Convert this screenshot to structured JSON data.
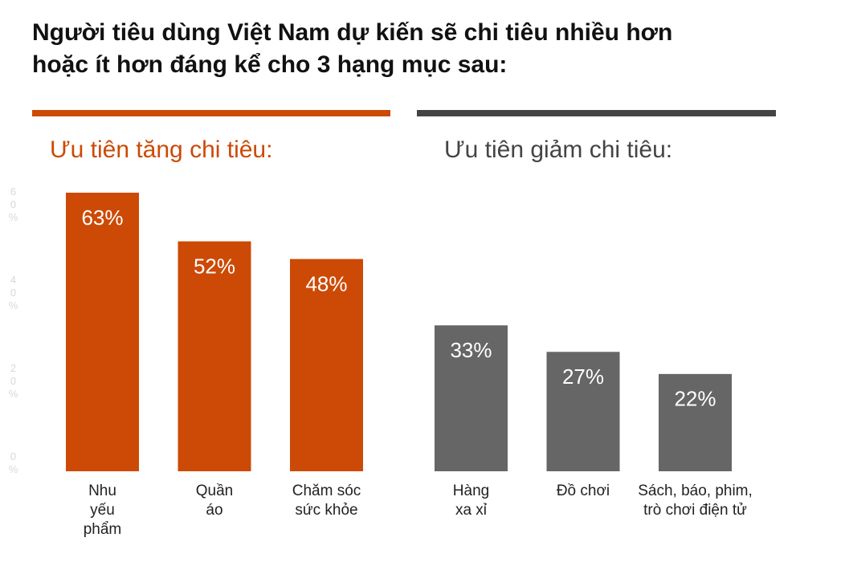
{
  "title": [
    "Người tiêu dùng Việt Nam dự kiến sẽ chi tiêu nhiều hơn",
    "hoặc ít hơn đáng kể cho 3 hạng mục sau:"
  ],
  "chart_data": [
    {
      "type": "bar",
      "title": "Ưu tiên tăng chi tiêu:",
      "color": "#cc4a06",
      "categories": [
        "Nhu\nyếu\nphẩm",
        "Quần\náo",
        "Chăm sóc\nsức khỏe"
      ],
      "values": [
        63,
        52,
        48
      ],
      "value_labels": [
        "63%",
        "52%",
        "48%"
      ],
      "ylim": [
        0,
        65
      ],
      "yticks": [
        {
          "value": 0,
          "label": "0%"
        },
        {
          "value": 20,
          "label": "20%"
        },
        {
          "value": 40,
          "label": "40%"
        },
        {
          "value": 60,
          "label": "60%"
        }
      ]
    },
    {
      "type": "bar",
      "title": "Ưu tiên giảm chi tiêu:",
      "color": "#666666",
      "categories": [
        "Hàng\nxa xỉ",
        "Đồ chơi",
        "Sách, báo, phim,\ntrò chơi điện tử"
      ],
      "values": [
        33,
        27,
        22
      ],
      "value_labels": [
        "33%",
        "27%",
        "22%"
      ],
      "ylim": [
        0,
        65
      ]
    }
  ]
}
